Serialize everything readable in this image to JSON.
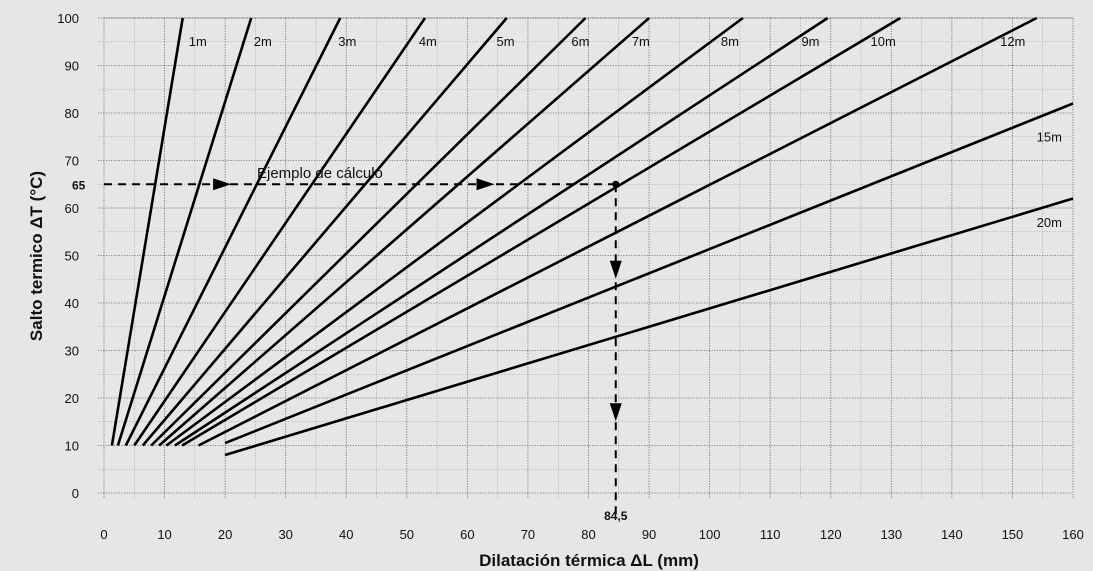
{
  "chart_data": {
    "type": "line",
    "xlabel": "Dilatación térmica ΔL (mm)",
    "ylabel": "Salto termico ΔT (°C)",
    "xlim": [
      0,
      160
    ],
    "ylim": [
      0,
      100
    ],
    "x_ticks": [
      0,
      10,
      20,
      30,
      40,
      50,
      60,
      70,
      80,
      90,
      100,
      110,
      120,
      130,
      140,
      150,
      160
    ],
    "y_ticks": [
      0,
      10,
      20,
      30,
      40,
      50,
      60,
      70,
      80,
      90,
      100
    ],
    "grid": true,
    "series": [
      {
        "name": "1m",
        "x": [
          1.3,
          13.0
        ],
        "y": [
          10,
          100
        ]
      },
      {
        "name": "2m",
        "x": [
          2.3,
          24.3
        ],
        "y": [
          10,
          100
        ]
      },
      {
        "name": "3m",
        "x": [
          3.6,
          39.0
        ],
        "y": [
          10,
          100
        ]
      },
      {
        "name": "4m",
        "x": [
          5.0,
          53.0
        ],
        "y": [
          10,
          100
        ]
      },
      {
        "name": "5m",
        "x": [
          6.4,
          66.5
        ],
        "y": [
          10,
          100
        ]
      },
      {
        "name": "6m",
        "x": [
          7.8,
          79.5
        ],
        "y": [
          10,
          100
        ]
      },
      {
        "name": "7m",
        "x": [
          9.1,
          90.0
        ],
        "y": [
          10,
          100
        ]
      },
      {
        "name": "8m",
        "x": [
          10.3,
          105.5
        ],
        "y": [
          10,
          100
        ]
      },
      {
        "name": "9m",
        "x": [
          11.7,
          119.5
        ],
        "y": [
          10,
          100
        ]
      },
      {
        "name": "10m",
        "x": [
          12.9,
          131.5
        ],
        "y": [
          10,
          100
        ]
      },
      {
        "name": "12m",
        "x": [
          15.6,
          154.0
        ],
        "y": [
          10,
          100
        ]
      },
      {
        "name": "15m",
        "x": [
          20.0,
          160.0
        ],
        "y": [
          10.5,
          82
        ]
      },
      {
        "name": "20m",
        "x": [
          20.0,
          160.0
        ],
        "y": [
          8,
          62
        ]
      }
    ],
    "annotations": {
      "example_label": "Ejemplo de cálculo",
      "y_marker": "65",
      "x_marker": "84,5",
      "example_point": {
        "x": 84.5,
        "y": 65
      }
    }
  }
}
